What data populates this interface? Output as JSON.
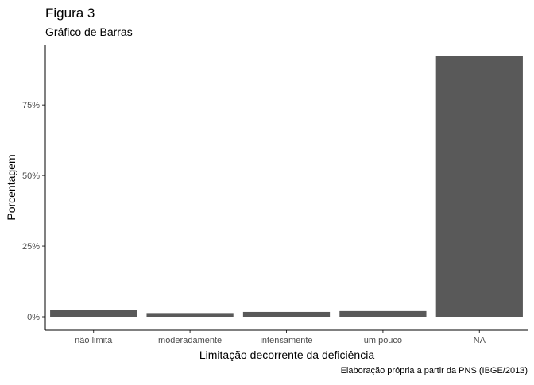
{
  "chart_data": {
    "type": "bar",
    "title": "Figura 3",
    "subtitle": "Gráfico de Barras",
    "caption": "Elaboração própria a partir da PNS (IBGE/2013)",
    "xlabel": "Limitação decorrente da deficiência",
    "ylabel": "Porcentagem",
    "categories": [
      "não limita",
      "moderadamente",
      "intensamente",
      "um pouco",
      "NA"
    ],
    "values": [
      2.5,
      1.3,
      1.7,
      2.0,
      92.2
    ],
    "value_unit": "percent",
    "ylim": [
      0,
      95.3
    ],
    "y_ticks": [
      0,
      25,
      50,
      75
    ],
    "y_tick_labels": [
      "0%",
      "25%",
      "50%",
      "75%"
    ],
    "grid": false,
    "bar_color": "#595959",
    "axis_color": "#000000",
    "tick_label_color": "#4d4d4d"
  }
}
